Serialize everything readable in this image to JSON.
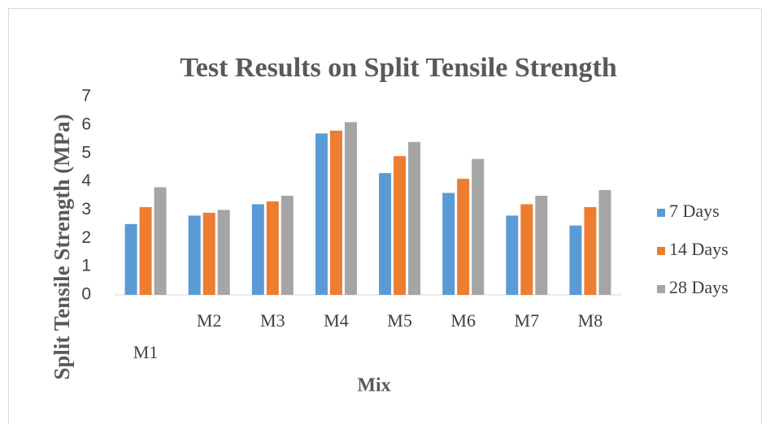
{
  "chart_data": {
    "type": "bar",
    "title": "Test Results on Split Tensile Strength",
    "x_label": "Mix",
    "y_label": "Split Tensile Strength (MPa)",
    "categories": [
      "M1",
      "M2",
      "M3",
      "M4",
      "M5",
      "M6",
      "M7",
      "M8"
    ],
    "series": [
      {
        "name": "7 Days",
        "color": "#5b9bd5",
        "values": [
          2.5,
          2.8,
          3.2,
          5.7,
          4.3,
          3.6,
          2.8,
          2.45
        ]
      },
      {
        "name": "14 Days",
        "color": "#ed7d31",
        "values": [
          3.1,
          2.9,
          3.3,
          5.8,
          4.9,
          4.1,
          3.2,
          3.1
        ]
      },
      {
        "name": "28 Days",
        "color": "#a5a5a5",
        "values": [
          3.8,
          3.0,
          3.5,
          6.1,
          5.4,
          4.8,
          3.5,
          3.7
        ]
      }
    ],
    "ylim": [
      0,
      7
    ],
    "yticks": [
      0,
      1,
      2,
      3,
      4,
      5,
      6,
      7
    ],
    "legend": "right"
  }
}
